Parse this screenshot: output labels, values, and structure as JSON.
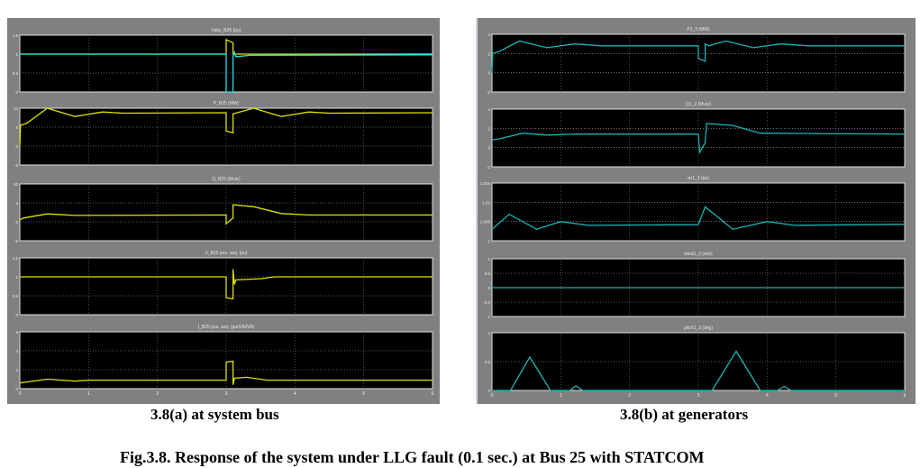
{
  "captions": {
    "a": "3.8(a) at system bus",
    "b": "3.8(b) at generators",
    "figure": "Fig.3.8. Response of the system under LLG fault (0.1 sec.) at Bus 25 with STATCOM"
  },
  "colors": {
    "background": "#808080",
    "plot_bg": "#000000",
    "yellow": "#e0e000",
    "cyan": "#19b5b5",
    "cyan_bright": "#22e0f0",
    "grid": "#bbbbbb"
  },
  "chart_data": [
    {
      "panel": "a",
      "type": "line",
      "xlim": [
        0,
        6
      ],
      "xticks": [
        "0",
        "1",
        "2",
        "3",
        "4",
        "5",
        "6"
      ],
      "subplots": [
        {
          "title": "Vabc_B25 (pu)",
          "ylim": [
            0,
            1.5
          ],
          "yticks": [
            "0",
            "0.5",
            "1",
            "1.5"
          ],
          "series": [
            {
              "color": "yellow",
              "points": [
                [
                  0,
                  1
                ],
                [
                  3,
                  1
                ],
                [
                  3,
                  1.38
                ],
                [
                  3.1,
                  1.3
                ],
                [
                  3.1,
                  1.0
                ],
                [
                  6,
                  1.0
                ]
              ]
            },
            {
              "color": "cyan_bright",
              "points": [
                [
                  0,
                  1
                ],
                [
                  3,
                  1
                ],
                [
                  3,
                  0
                ],
                [
                  3.1,
                  0
                ],
                [
                  3.1,
                  0.95
                ],
                [
                  3.12,
                  1.05
                ],
                [
                  3.14,
                  0.93
                ],
                [
                  3.35,
                  0.97
                ],
                [
                  6,
                  0.98
                ]
              ]
            }
          ]
        },
        {
          "title": "P_B25 (MW)",
          "ylim": [
            -5,
            10
          ],
          "yticks": [
            "-5",
            "0",
            "5",
            "10"
          ],
          "series": [
            {
              "color": "yellow",
              "points": [
                [
                  0,
                  0
                ],
                [
                  0.01,
                  5.5
                ],
                [
                  0.1,
                  6
                ],
                [
                  0.4,
                  10
                ],
                [
                  0.8,
                  7.8
                ],
                [
                  1.2,
                  9
                ],
                [
                  1.5,
                  8.7
                ],
                [
                  3,
                  8.8
                ],
                [
                  3,
                  4
                ],
                [
                  3.1,
                  3.5
                ],
                [
                  3.1,
                  8.5
                ],
                [
                  3.4,
                  10
                ],
                [
                  3.8,
                  7.8
                ],
                [
                  4.2,
                  9
                ],
                [
                  4.5,
                  8.7
                ],
                [
                  6,
                  8.8
                ]
              ]
            }
          ]
        },
        {
          "title": "Q_B25 (Mvar)",
          "ylim": [
            -5,
            10
          ],
          "yticks": [
            "-5",
            "0",
            "5",
            "10"
          ],
          "series": [
            {
              "color": "yellow",
              "points": [
                [
                  0,
                  0.5
                ],
                [
                  0.05,
                  1
                ],
                [
                  0.4,
                  2.1
                ],
                [
                  0.8,
                  1.7
                ],
                [
                  3,
                  1.8
                ],
                [
                  3,
                  -0.5
                ],
                [
                  3.1,
                  1
                ],
                [
                  3.1,
                  4.5
                ],
                [
                  3.4,
                  4
                ],
                [
                  3.8,
                  2.2
                ],
                [
                  4.2,
                  1.8
                ],
                [
                  6,
                  1.8
                ]
              ]
            }
          ]
        },
        {
          "title": "V_B25 pos. seq. (pu)",
          "ylim": [
            0,
            1.5
          ],
          "yticks": [
            "0",
            "0.5",
            "1",
            "1.5"
          ],
          "series": [
            {
              "color": "yellow",
              "points": [
                [
                  0,
                  1
                ],
                [
                  3,
                  1
                ],
                [
                  3,
                  0.45
                ],
                [
                  3.1,
                  0.42
                ],
                [
                  3.1,
                  1.2
                ],
                [
                  3.12,
                  0.8
                ],
                [
                  3.14,
                  0.92
                ],
                [
                  3.5,
                  0.95
                ],
                [
                  3.7,
                  1
                ],
                [
                  6,
                  1
                ]
              ]
            }
          ]
        },
        {
          "title": "I_B25 pos. seq. (pu/10MVA)",
          "ylim": [
            0,
            6
          ],
          "yticks": [
            "0",
            "2",
            "4",
            "6"
          ],
          "series": [
            {
              "color": "yellow",
              "points": [
                [
                  0,
                  0.6
                ],
                [
                  0.1,
                  0.7
                ],
                [
                  0.4,
                  1
                ],
                [
                  0.8,
                  0.8
                ],
                [
                  1,
                  0.9
                ],
                [
                  3,
                  0.9
                ],
                [
                  3,
                  2.8
                ],
                [
                  3.1,
                  2.9
                ],
                [
                  3.1,
                  0.4
                ],
                [
                  3.12,
                  1.1
                ],
                [
                  3.3,
                  1.2
                ],
                [
                  3.6,
                  0.9
                ],
                [
                  6,
                  0.9
                ]
              ]
            }
          ]
        }
      ]
    },
    {
      "panel": "b",
      "type": "line",
      "xlim": [
        0,
        6
      ],
      "xticks": [
        "0",
        "1",
        "2",
        "3",
        "4",
        "5",
        "6"
      ],
      "subplots": [
        {
          "title": "P1_3 (MW)",
          "ylim": [
            -2,
            4
          ],
          "yticks": [
            "-2",
            "0",
            "2",
            "4"
          ],
          "series": [
            {
              "color": "cyan",
              "points": [
                [
                  0,
                  0
                ],
                [
                  0.01,
                  2
                ],
                [
                  0.1,
                  2.2
                ],
                [
                  0.4,
                  3.3
                ],
                [
                  0.8,
                  2.6
                ],
                [
                  1.2,
                  3.0
                ],
                [
                  1.6,
                  2.8
                ],
                [
                  3,
                  2.8
                ],
                [
                  3,
                  1.5
                ],
                [
                  3.1,
                  1.2
                ],
                [
                  3.1,
                  3
                ],
                [
                  3.15,
                  2.8
                ],
                [
                  3.4,
                  3.3
                ],
                [
                  3.8,
                  2.6
                ],
                [
                  4.2,
                  3.0
                ],
                [
                  4.6,
                  2.8
                ],
                [
                  6,
                  2.8
                ]
              ]
            }
          ]
        },
        {
          "title": "Q1_3 (Mvar)",
          "ylim": [
            -2,
            4
          ],
          "yticks": [
            "-2",
            "0",
            "2",
            "4"
          ],
          "series": [
            {
              "color": "cyan",
              "points": [
                [
                  0,
                  0.8
                ],
                [
                  0.1,
                  0.9
                ],
                [
                  0.45,
                  1.5
                ],
                [
                  0.8,
                  1.3
                ],
                [
                  1.2,
                  1.4
                ],
                [
                  3,
                  1.4
                ],
                [
                  3.02,
                  -0.5
                ],
                [
                  3.1,
                  0.5
                ],
                [
                  3.12,
                  2.5
                ],
                [
                  3.5,
                  2.3
                ],
                [
                  3.9,
                  1.5
                ],
                [
                  6,
                  1.4
                ]
              ]
            }
          ]
        },
        {
          "title": "wr1_3 (pu)",
          "ylim": [
            1,
            1.015
          ],
          "yticks": [
            "1",
            "1.005",
            "1.01",
            "1.015"
          ],
          "series": [
            {
              "color": "cyan",
              "points": [
                [
                  0,
                  1.003
                ],
                [
                  0.25,
                  1.0069
                ],
                [
                  0.65,
                  1.003
                ],
                [
                  1,
                  1.005
                ],
                [
                  1.4,
                  1.004
                ],
                [
                  3,
                  1.0042
                ],
                [
                  3.1,
                  1.0088
                ],
                [
                  3.5,
                  1.003
                ],
                [
                  4,
                  1.005
                ],
                [
                  4.4,
                  1.004
                ],
                [
                  6,
                  1.0043
                ]
              ]
            }
          ]
        },
        {
          "title": "wind1_3 (m/s)",
          "ylim": [
            -1,
            1
          ],
          "yticks": [
            "-1",
            "-0.5",
            "0",
            "0.5",
            "1"
          ],
          "series": [
            {
              "color": "cyan",
              "points": [
                [
                  0,
                  0
                ],
                [
                  6,
                  0
                ]
              ]
            }
          ]
        },
        {
          "title": "pitch1_3 (deg)",
          "ylim": [
            0,
            1
          ],
          "yticks": [
            "0",
            "0.5",
            "1"
          ],
          "series": [
            {
              "color": "cyan",
              "points": [
                [
                  0,
                  0
                ],
                [
                  0.27,
                  0
                ],
                [
                  0.55,
                  0.58
                ],
                [
                  0.85,
                  0
                ],
                [
                  1.13,
                  0
                ],
                [
                  1.22,
                  0.08
                ],
                [
                  1.32,
                  0
                ],
                [
                  3.2,
                  0
                ],
                [
                  3.55,
                  0.68
                ],
                [
                  3.9,
                  0
                ],
                [
                  4.15,
                  0
                ],
                [
                  4.25,
                  0.07
                ],
                [
                  4.35,
                  0
                ],
                [
                  6,
                  0
                ]
              ]
            }
          ]
        }
      ]
    }
  ]
}
